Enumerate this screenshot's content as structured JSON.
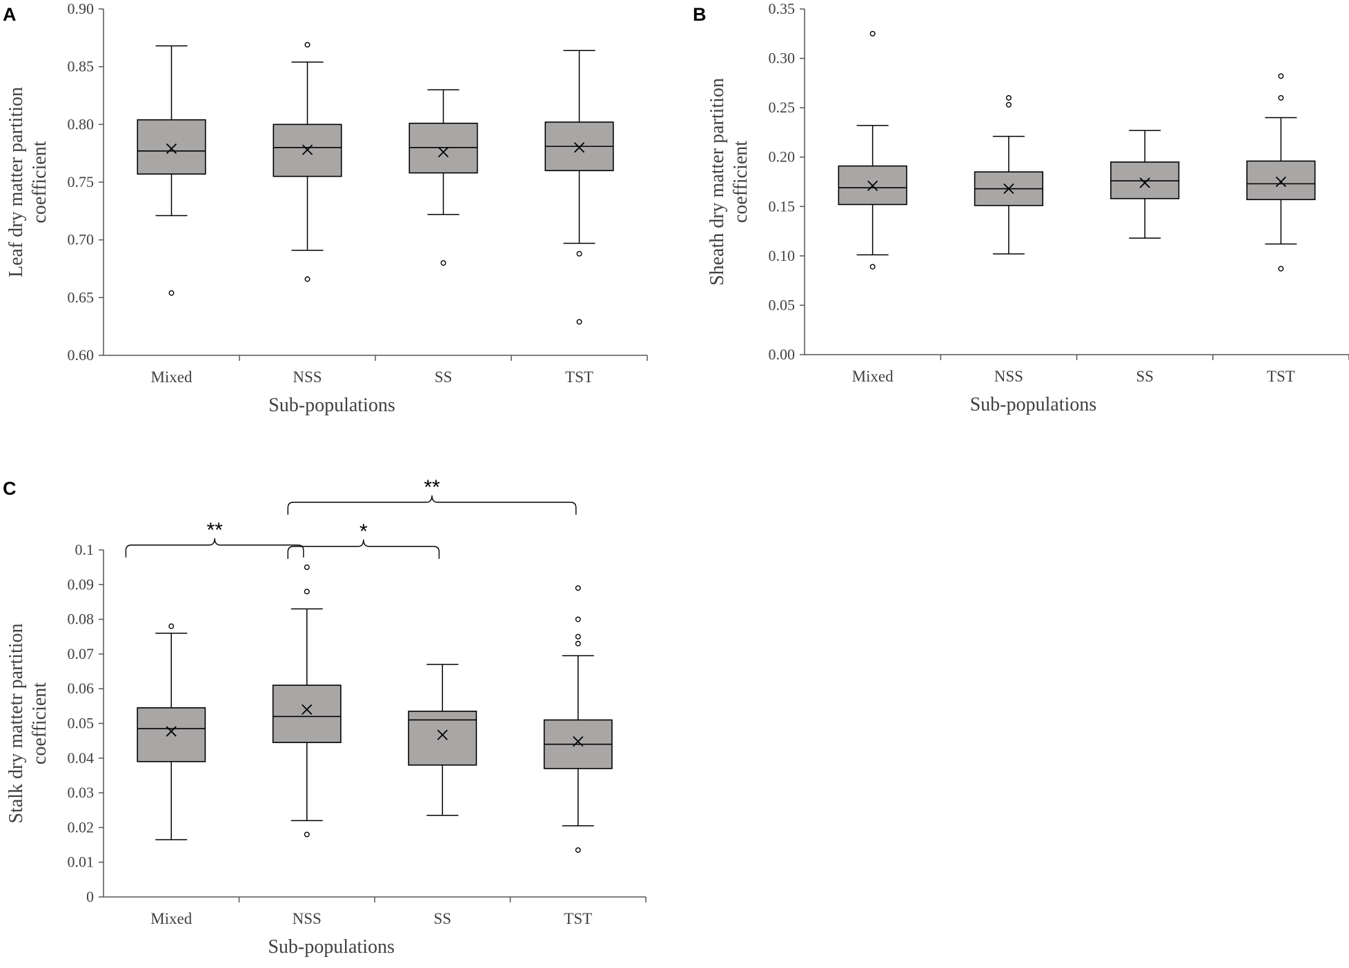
{
  "chart_data": [
    {
      "panel": "A",
      "type": "box",
      "xlabel": "Sub-populations",
      "ylabel_lines": [
        "Leaf dry matter partition",
        "coefficient"
      ],
      "ylim": [
        0.6,
        0.9
      ],
      "yticks": [
        "0.60",
        "0.65",
        "0.70",
        "0.75",
        "0.80",
        "0.85",
        "0.90"
      ],
      "categories": [
        "Mixed",
        "NSS",
        "SS",
        "TST"
      ],
      "boxes": [
        {
          "q1": 0.757,
          "median": 0.777,
          "q3": 0.804,
          "whisker_low": 0.721,
          "whisker_high": 0.868,
          "mean": 0.779,
          "outliers": [
            0.654
          ]
        },
        {
          "q1": 0.755,
          "median": 0.78,
          "q3": 0.8,
          "whisker_low": 0.691,
          "whisker_high": 0.854,
          "mean": 0.778,
          "outliers": [
            0.869,
            0.666
          ]
        },
        {
          "q1": 0.758,
          "median": 0.78,
          "q3": 0.801,
          "whisker_low": 0.722,
          "whisker_high": 0.83,
          "mean": 0.776,
          "outliers": [
            0.68
          ]
        },
        {
          "q1": 0.76,
          "median": 0.781,
          "q3": 0.802,
          "whisker_low": 0.697,
          "whisker_high": 0.864,
          "mean": 0.78,
          "outliers": [
            0.688,
            0.629
          ]
        }
      ],
      "significance": []
    },
    {
      "panel": "B",
      "type": "box",
      "xlabel": "Sub-populations",
      "ylabel_lines": [
        "Sheath dry matter partition",
        "coefficient"
      ],
      "ylim": [
        0.0,
        0.35
      ],
      "yticks": [
        "0.00",
        "0.05",
        "0.10",
        "0.15",
        "0.20",
        "0.25",
        "0.30",
        "0.35"
      ],
      "categories": [
        "Mixed",
        "NSS",
        "SS",
        "TST"
      ],
      "boxes": [
        {
          "q1": 0.152,
          "median": 0.169,
          "q3": 0.191,
          "whisker_low": 0.101,
          "whisker_high": 0.232,
          "mean": 0.171,
          "outliers": [
            0.325,
            0.089
          ]
        },
        {
          "q1": 0.151,
          "median": 0.168,
          "q3": 0.185,
          "whisker_low": 0.102,
          "whisker_high": 0.221,
          "mean": 0.168,
          "outliers": [
            0.26,
            0.253
          ]
        },
        {
          "q1": 0.158,
          "median": 0.176,
          "q3": 0.195,
          "whisker_low": 0.118,
          "whisker_high": 0.227,
          "mean": 0.174,
          "outliers": []
        },
        {
          "q1": 0.157,
          "median": 0.173,
          "q3": 0.196,
          "whisker_low": 0.112,
          "whisker_high": 0.24,
          "mean": 0.175,
          "outliers": [
            0.282,
            0.26,
            0.087
          ]
        }
      ],
      "significance": []
    },
    {
      "panel": "C",
      "type": "box",
      "xlabel": "Sub-populations",
      "ylabel_lines": [
        "Stalk dry mattetr partition",
        "coefficient"
      ],
      "ylim": [
        0,
        0.1
      ],
      "yticks": [
        "0",
        "0.01",
        "0.02",
        "0.03",
        "0.04",
        "0.05",
        "0.06",
        "0.07",
        "0.08",
        "0.09",
        "0.1"
      ],
      "categories": [
        "Mixed",
        "NSS",
        "SS",
        "TST"
      ],
      "boxes": [
        {
          "q1": 0.039,
          "median": 0.0485,
          "q3": 0.0545,
          "whisker_low": 0.0165,
          "whisker_high": 0.076,
          "mean": 0.0477,
          "outliers": [
            0.078
          ]
        },
        {
          "q1": 0.0445,
          "median": 0.052,
          "q3": 0.061,
          "whisker_low": 0.022,
          "whisker_high": 0.083,
          "mean": 0.054,
          "outliers": [
            0.095,
            0.088,
            0.018
          ]
        },
        {
          "q1": 0.038,
          "median": 0.051,
          "q3": 0.0535,
          "whisker_low": 0.0235,
          "whisker_high": 0.067,
          "mean": 0.0467,
          "outliers": []
        },
        {
          "q1": 0.037,
          "median": 0.044,
          "q3": 0.051,
          "whisker_low": 0.0205,
          "whisker_high": 0.0695,
          "mean": 0.0448,
          "outliers": [
            0.089,
            0.08,
            0.075,
            0.073,
            0.0135
          ]
        }
      ],
      "significance": [
        {
          "from": 0,
          "to": 1,
          "label": "**"
        },
        {
          "from": 1,
          "to": 2,
          "label": "*"
        },
        {
          "from": 1,
          "to": 3,
          "label": "**"
        }
      ]
    }
  ]
}
